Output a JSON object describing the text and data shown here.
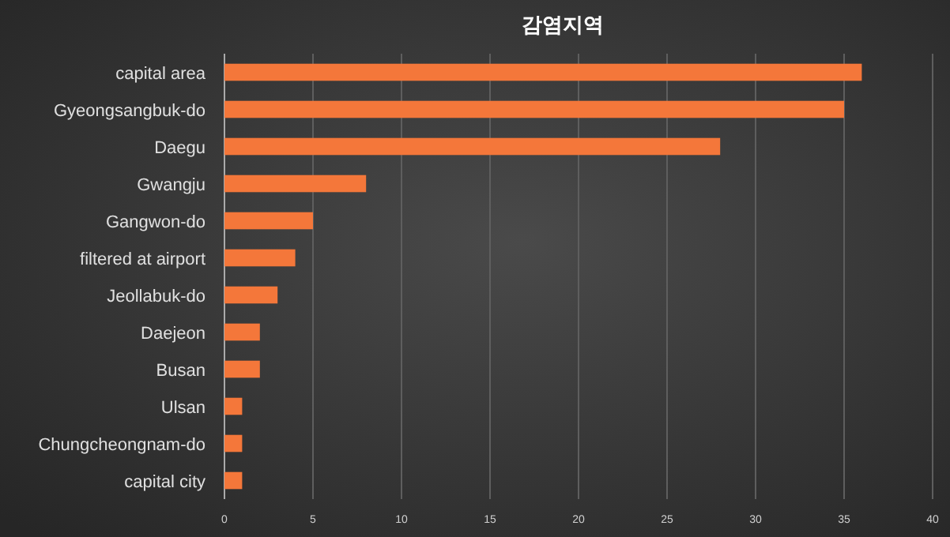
{
  "chart_data": {
    "type": "bar",
    "orientation": "horizontal",
    "title": "감염지역",
    "categories": [
      "capital area",
      "Gyeongsangbuk-do",
      "Daegu",
      "Gwangju",
      "Gangwon-do",
      "filtered at airport",
      "Jeollabuk-do",
      "Daejeon",
      "Busan",
      "Ulsan",
      "Chungcheongnam-do",
      "capital city"
    ],
    "values": [
      36,
      35,
      28,
      8,
      5,
      4,
      3,
      2,
      2,
      1,
      1,
      1
    ],
    "color": "#f4773a",
    "xlim": [
      0,
      40
    ],
    "xticks": [
      0,
      5,
      10,
      15,
      20,
      25,
      30,
      35,
      40
    ],
    "grid": "x"
  }
}
